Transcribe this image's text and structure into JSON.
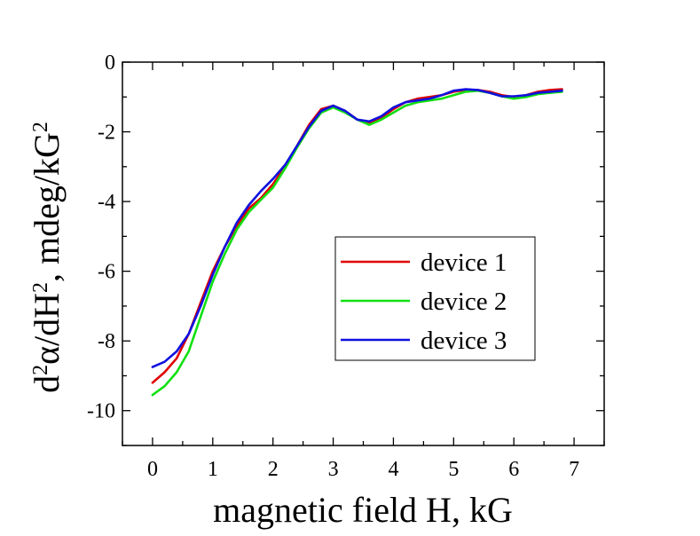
{
  "chart_data": {
    "type": "line",
    "xlabel": "magnetic field H, kG",
    "ylabel_parts": [
      "d",
      "2",
      "α/dH",
      "2",
      ", mdeg/kG",
      "2"
    ],
    "xlim": [
      -0.5,
      7.5
    ],
    "ylim": [
      -11,
      0
    ],
    "x_ticks": [
      0,
      1,
      2,
      3,
      4,
      5,
      6,
      7
    ],
    "x_tick_labels": [
      "0",
      "1",
      "2",
      "3",
      "4",
      "5",
      "6",
      "7"
    ],
    "y_ticks": [
      0,
      -2,
      -4,
      -6,
      -8,
      -10
    ],
    "y_tick_labels": [
      "0",
      "-2",
      "-4",
      "-6",
      "-8",
      "-10"
    ],
    "legend_position": "center-right",
    "series": [
      {
        "name": "device 1",
        "color": "#e00000",
        "x": [
          0,
          0.2,
          0.4,
          0.6,
          0.8,
          1.0,
          1.2,
          1.4,
          1.6,
          1.8,
          2.0,
          2.2,
          2.4,
          2.6,
          2.8,
          3.0,
          3.2,
          3.4,
          3.6,
          3.8,
          4.0,
          4.2,
          4.4,
          4.6,
          4.8,
          5.0,
          5.2,
          5.4,
          5.6,
          5.8,
          6.0,
          6.2,
          6.4,
          6.6,
          6.8
        ],
        "y": [
          -9.2,
          -8.9,
          -8.5,
          -7.8,
          -6.9,
          -6.0,
          -5.3,
          -4.7,
          -4.2,
          -3.9,
          -3.5,
          -3.0,
          -2.4,
          -1.8,
          -1.35,
          -1.25,
          -1.4,
          -1.65,
          -1.75,
          -1.6,
          -1.35,
          -1.15,
          -1.05,
          -1.0,
          -0.95,
          -0.85,
          -0.8,
          -0.8,
          -0.85,
          -0.95,
          -1.0,
          -0.95,
          -0.85,
          -0.8,
          -0.78
        ]
      },
      {
        "name": "device 2",
        "color": "#10e010",
        "x": [
          0,
          0.2,
          0.4,
          0.6,
          0.8,
          1.0,
          1.2,
          1.4,
          1.6,
          1.8,
          2.0,
          2.2,
          2.4,
          2.6,
          2.8,
          3.0,
          3.2,
          3.4,
          3.6,
          3.8,
          4.0,
          4.2,
          4.4,
          4.6,
          4.8,
          5.0,
          5.2,
          5.4,
          5.6,
          5.8,
          6.0,
          6.2,
          6.4,
          6.6,
          6.8
        ],
        "y": [
          -9.55,
          -9.3,
          -8.9,
          -8.3,
          -7.3,
          -6.3,
          -5.5,
          -4.8,
          -4.3,
          -3.95,
          -3.6,
          -3.05,
          -2.45,
          -1.9,
          -1.45,
          -1.3,
          -1.45,
          -1.65,
          -1.8,
          -1.65,
          -1.45,
          -1.25,
          -1.15,
          -1.1,
          -1.05,
          -0.95,
          -0.85,
          -0.82,
          -0.88,
          -0.98,
          -1.05,
          -1.0,
          -0.92,
          -0.88,
          -0.85
        ]
      },
      {
        "name": "device 3",
        "color": "#1010e0",
        "x": [
          0,
          0.2,
          0.4,
          0.6,
          0.8,
          1.0,
          1.2,
          1.4,
          1.6,
          1.8,
          2.0,
          2.2,
          2.4,
          2.6,
          2.8,
          3.0,
          3.2,
          3.4,
          3.6,
          3.8,
          4.0,
          4.2,
          4.4,
          4.6,
          4.8,
          5.0,
          5.2,
          5.4,
          5.6,
          5.8,
          6.0,
          6.2,
          6.4,
          6.6,
          6.8
        ],
        "y": [
          -8.75,
          -8.6,
          -8.3,
          -7.8,
          -7.0,
          -6.1,
          -5.3,
          -4.6,
          -4.1,
          -3.7,
          -3.35,
          -2.95,
          -2.4,
          -1.85,
          -1.4,
          -1.25,
          -1.4,
          -1.65,
          -1.7,
          -1.55,
          -1.3,
          -1.15,
          -1.1,
          -1.05,
          -0.95,
          -0.82,
          -0.78,
          -0.8,
          -0.88,
          -0.98,
          -0.98,
          -0.95,
          -0.88,
          -0.85,
          -0.82
        ]
      }
    ]
  }
}
